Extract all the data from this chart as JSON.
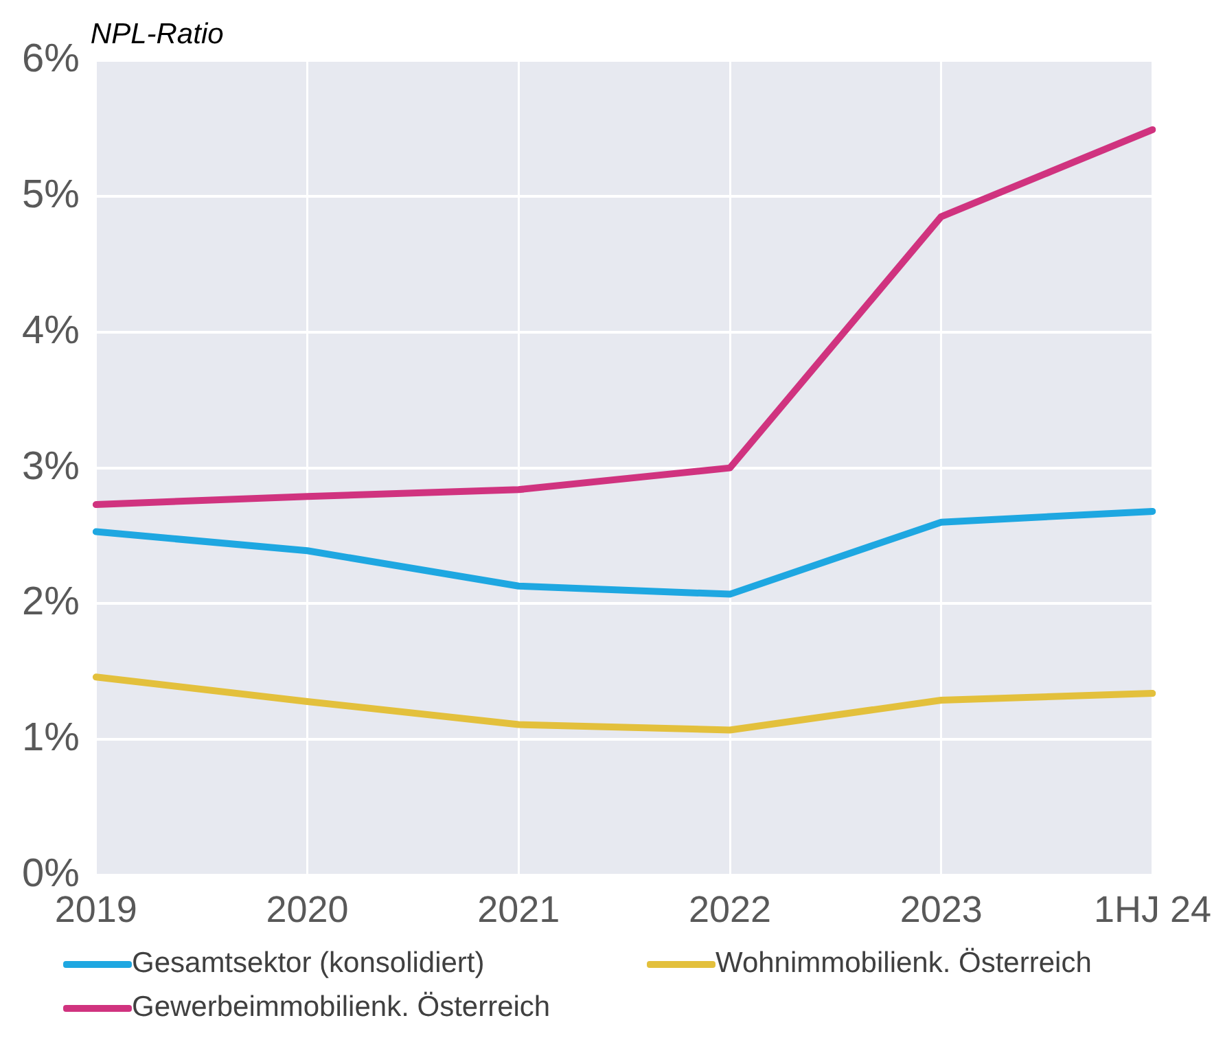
{
  "chart_data": {
    "type": "line",
    "title": "NPL-Ratio",
    "categories": [
      "2019",
      "2020",
      "2021",
      "2022",
      "2023",
      "1HJ 24"
    ],
    "series": [
      {
        "name": "Gesamtsektor (konsolidiert)",
        "color": "#1ea7e1",
        "values": [
          2.53,
          2.39,
          2.13,
          2.07,
          2.6,
          2.68
        ]
      },
      {
        "name": "Wohnimmobilienk. Österreich",
        "color": "#e3c03c",
        "values": [
          1.46,
          1.28,
          1.11,
          1.07,
          1.29,
          1.34
        ]
      },
      {
        "name": "Gewerbeimmobilienk. Österreich",
        "color": "#d0337f",
        "values": [
          2.73,
          2.79,
          2.84,
          3.0,
          4.85,
          5.49
        ]
      }
    ],
    "ylim": [
      0,
      6
    ],
    "yticks": [
      {
        "value": 0,
        "label": "0%"
      },
      {
        "value": 1,
        "label": "1%"
      },
      {
        "value": 2,
        "label": "2%"
      },
      {
        "value": 3,
        "label": "3%"
      },
      {
        "value": 4,
        "label": "4%"
      },
      {
        "value": 5,
        "label": "5%"
      },
      {
        "value": 6,
        "label": "6%"
      }
    ],
    "grid": true,
    "legend": "bottom",
    "marker": "none",
    "line_style": "solid"
  }
}
